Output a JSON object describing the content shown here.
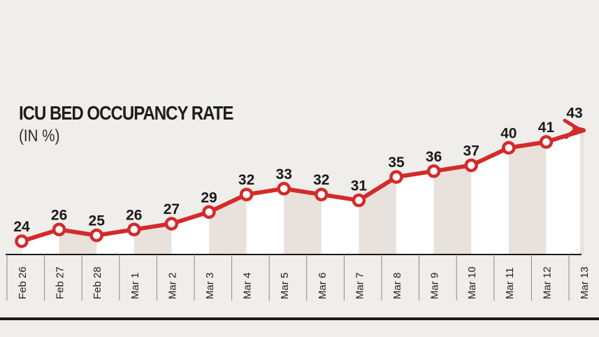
{
  "chart_data": {
    "type": "line",
    "title": "ICU BED OCCUPANCY RATE",
    "subtitle": "(IN %)",
    "categories": [
      "Feb 26",
      "Feb 27",
      "Feb 28",
      "Mar 1",
      "Mar 2",
      "Mar 3",
      "Mar 4",
      "Mar 5",
      "Mar 6",
      "Mar 7",
      "Mar 8",
      "Mar 9",
      "Mar 10",
      "Mar 11",
      "Mar 12",
      "Mar 13"
    ],
    "series": [
      {
        "values": [
          24,
          26,
          25,
          26,
          27,
          29,
          32,
          33,
          32,
          31,
          35,
          36,
          37,
          40,
          41,
          43
        ]
      }
    ],
    "data_labels": [
      "24",
      "26",
      "25",
      "26",
      "27",
      "29",
      "32",
      "33",
      "32",
      "31",
      "35",
      "36",
      "37",
      "40",
      "41",
      "43"
    ],
    "colors": {
      "line": "#d42a2a",
      "marker_fill": "#ffffff",
      "band_light": "#ffffff",
      "band_dark": "#e9e2dc",
      "axis": "#1a1a1a",
      "background": "#f0eeeb"
    },
    "grid": false,
    "final_point_marker": "arrow"
  }
}
